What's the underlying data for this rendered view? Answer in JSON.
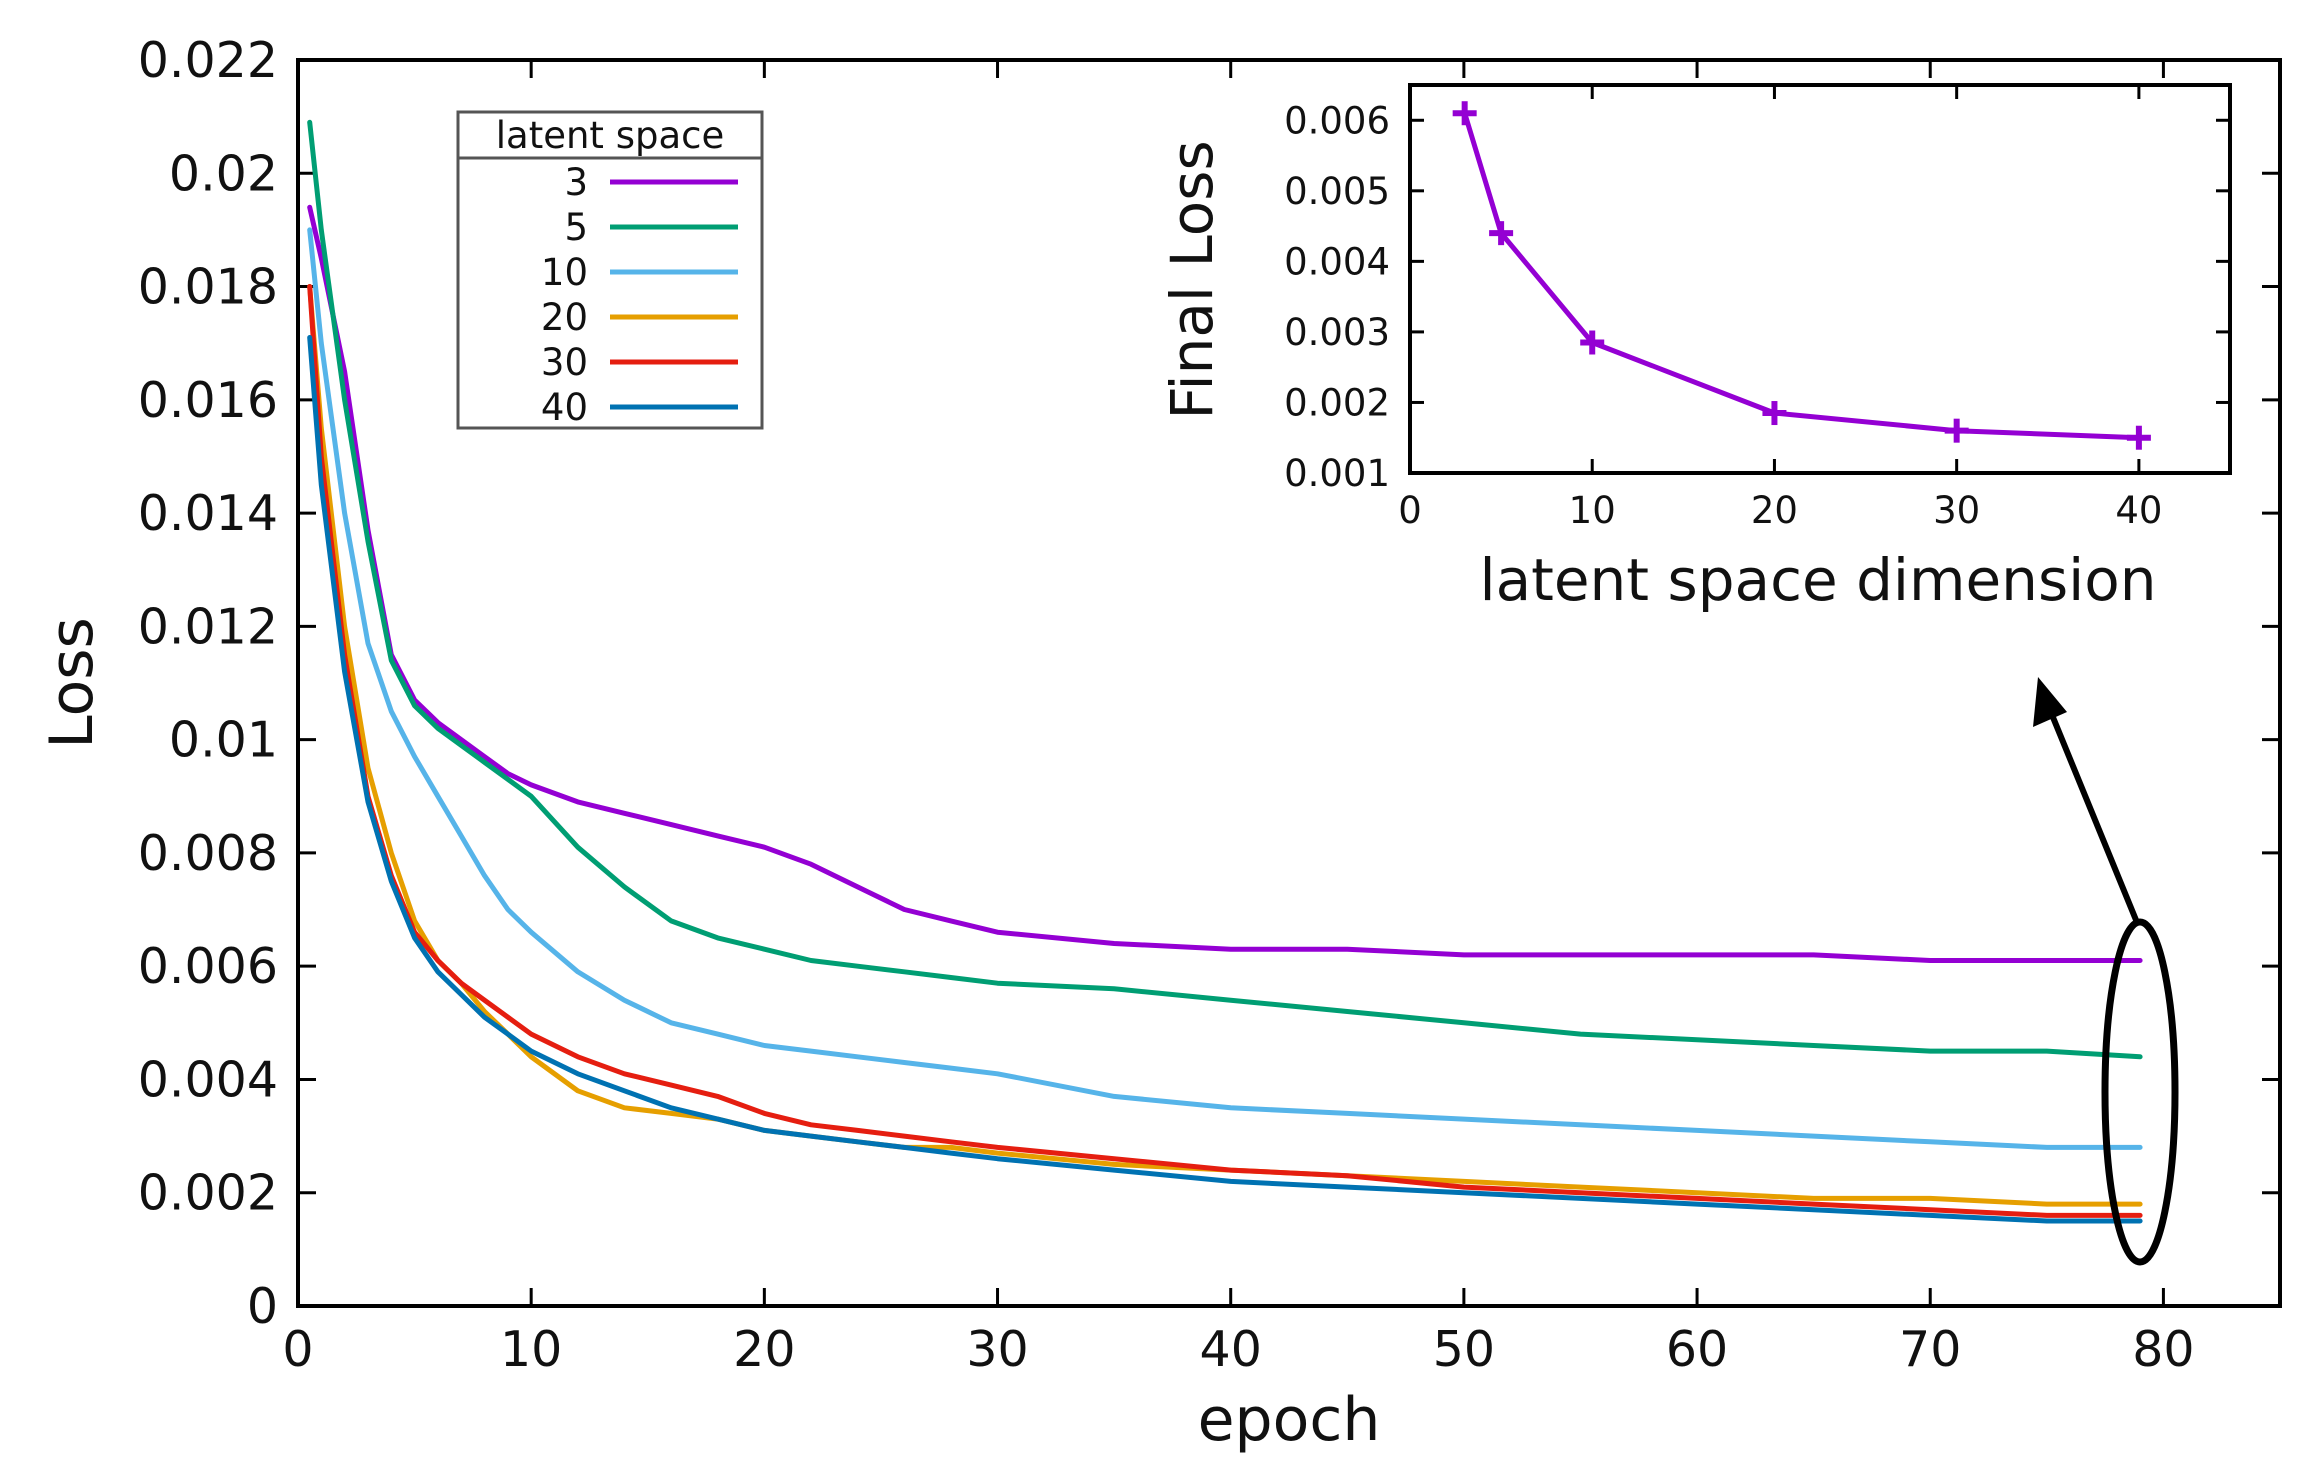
{
  "chart_data": [
    {
      "type": "line",
      "title": "",
      "xlabel": "epoch",
      "ylabel": "Loss",
      "xlim": [
        0,
        85
      ],
      "ylim": [
        0,
        0.022
      ],
      "xticks": [
        "0",
        "10",
        "20",
        "30",
        "40",
        "50",
        "60",
        "70",
        "80"
      ],
      "yticks": [
        "0",
        "0.002",
        "0.004",
        "0.006",
        "0.008",
        "0.01",
        "0.012",
        "0.014",
        "0.016",
        "0.018",
        "0.02",
        "0.022"
      ],
      "legend": {
        "title": "latent space",
        "position": "top-left"
      },
      "x": [
        0.5,
        1,
        2,
        3,
        4,
        5,
        6,
        7,
        8,
        9,
        10,
        12,
        14,
        16,
        18,
        20,
        22,
        24,
        26,
        28,
        30,
        35,
        40,
        45,
        50,
        55,
        60,
        65,
        70,
        75,
        79
      ],
      "series": [
        {
          "name": "3",
          "color": "#9400d3",
          "values": [
            0.0194,
            0.0185,
            0.0165,
            0.0137,
            0.0115,
            0.0107,
            0.0103,
            0.01,
            0.0097,
            0.0094,
            0.0092,
            0.0089,
            0.0087,
            0.0085,
            0.0083,
            0.0081,
            0.0078,
            0.0074,
            0.007,
            0.0068,
            0.0066,
            0.0064,
            0.0063,
            0.0063,
            0.0062,
            0.0062,
            0.0062,
            0.0062,
            0.0061,
            0.0061,
            0.0061
          ]
        },
        {
          "name": "5",
          "color": "#009e73",
          "values": [
            0.0209,
            0.019,
            0.016,
            0.0135,
            0.0114,
            0.0106,
            0.0102,
            0.0099,
            0.0096,
            0.0093,
            0.009,
            0.0081,
            0.0074,
            0.0068,
            0.0065,
            0.0063,
            0.0061,
            0.006,
            0.0059,
            0.0058,
            0.0057,
            0.0056,
            0.0054,
            0.0052,
            0.005,
            0.0048,
            0.0047,
            0.0046,
            0.0045,
            0.0045,
            0.0044
          ]
        },
        {
          "name": "10",
          "color": "#56b4e9",
          "values": [
            0.019,
            0.017,
            0.014,
            0.0117,
            0.0105,
            0.0097,
            0.009,
            0.0083,
            0.0076,
            0.007,
            0.0066,
            0.0059,
            0.0054,
            0.005,
            0.0048,
            0.0046,
            0.0045,
            0.0044,
            0.0043,
            0.0042,
            0.0041,
            0.0037,
            0.0035,
            0.0034,
            0.0033,
            0.0032,
            0.0031,
            0.003,
            0.0029,
            0.0028,
            0.0028
          ]
        },
        {
          "name": "20",
          "color": "#e69f00",
          "values": [
            0.018,
            0.0155,
            0.012,
            0.0095,
            0.008,
            0.0068,
            0.0061,
            0.0057,
            0.0052,
            0.0048,
            0.0044,
            0.0038,
            0.0035,
            0.0034,
            0.0033,
            0.0031,
            0.003,
            0.0029,
            0.0028,
            0.0028,
            0.0027,
            0.0025,
            0.0024,
            0.0023,
            0.0022,
            0.0021,
            0.002,
            0.0019,
            0.0019,
            0.0018,
            0.0018
          ]
        },
        {
          "name": "30",
          "color": "#e51e10",
          "values": [
            0.018,
            0.015,
            0.0115,
            0.009,
            0.0076,
            0.0066,
            0.0061,
            0.0057,
            0.0054,
            0.0051,
            0.0048,
            0.0044,
            0.0041,
            0.0039,
            0.0037,
            0.0034,
            0.0032,
            0.0031,
            0.003,
            0.0029,
            0.0028,
            0.0026,
            0.0024,
            0.0023,
            0.0021,
            0.002,
            0.0019,
            0.0018,
            0.0017,
            0.0016,
            0.0016
          ]
        },
        {
          "name": "40",
          "color": "#0072b2",
          "values": [
            0.0171,
            0.0145,
            0.0112,
            0.0089,
            0.0075,
            0.0065,
            0.0059,
            0.0055,
            0.0051,
            0.0048,
            0.0045,
            0.0041,
            0.0038,
            0.0035,
            0.0033,
            0.0031,
            0.003,
            0.0029,
            0.0028,
            0.0027,
            0.0026,
            0.0024,
            0.0022,
            0.0021,
            0.002,
            0.0019,
            0.0018,
            0.0017,
            0.0016,
            0.0015,
            0.0015
          ]
        }
      ],
      "annotations": [
        "ellipse around final epoch values",
        "arrow pointing to inset"
      ]
    },
    {
      "type": "line",
      "title": "",
      "xlabel": "latent space dimension",
      "ylabel": "Final Loss",
      "xlim": [
        0,
        45
      ],
      "ylim": [
        0.001,
        0.0065
      ],
      "xticks": [
        "0",
        "10",
        "20",
        "30",
        "40"
      ],
      "yticks": [
        "0.001",
        "0.002",
        "0.003",
        "0.004",
        "0.005",
        "0.006"
      ],
      "x": [
        3,
        5,
        10,
        20,
        30,
        40
      ],
      "series": [
        {
          "name": "Final Loss",
          "color": "#9400d3",
          "values": [
            0.0061,
            0.0044,
            0.00285,
            0.00185,
            0.0016,
            0.0015
          ]
        }
      ]
    }
  ]
}
